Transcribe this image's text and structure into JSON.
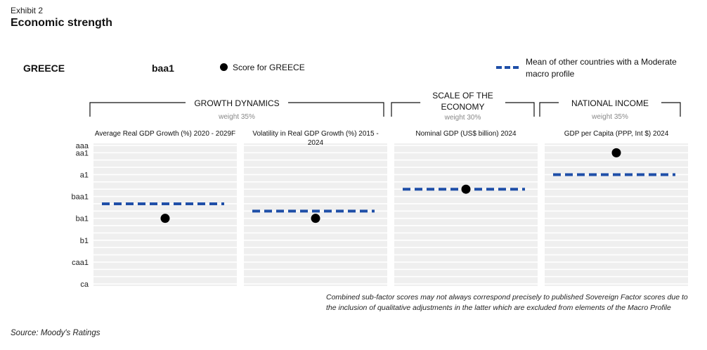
{
  "header": {
    "exhibit": "Exhibit 2",
    "title": "Economic strength"
  },
  "country": {
    "name": "GREECE",
    "score": "baa1"
  },
  "legend": {
    "score_label": "Score for GREECE",
    "mean_label": "Mean of other countries with a Moderate macro profile",
    "score_color": "#000000",
    "mean_color": "#1f4fa8"
  },
  "groups": [
    {
      "title_lines": [
        "GROWTH DYNAMICS"
      ],
      "weight": "weight 35%"
    },
    {
      "title_lines": [
        "SCALE OF THE",
        "ECONOMY"
      ],
      "weight": "weight 30%"
    },
    {
      "title_lines": [
        "NATIONAL INCOME"
      ],
      "weight": "weight 35%"
    }
  ],
  "chart_data": {
    "type": "scatter",
    "y_scale": [
      "aaa",
      "aa1",
      "a1",
      "baa1",
      "ba1",
      "b1",
      "caa1",
      "ca"
    ],
    "series": [
      {
        "name": "Score for GREECE"
      },
      {
        "name": "Mean of other countries with a Moderate macro profile"
      }
    ],
    "panels": [
      {
        "title_lines": [
          "Average Real GDP Growth (%) 2020 - 2029F"
        ],
        "score": "ba1",
        "mean": "baa2"
      },
      {
        "title_lines": [
          "Volatility in Real GDP Growth (%) 2015 -",
          "2024"
        ],
        "score": "ba1",
        "mean": "baa3"
      },
      {
        "title_lines": [
          "Nominal GDP (US$ billion) 2024"
        ],
        "score": "a3",
        "mean": "a3"
      },
      {
        "title_lines": [
          "GDP per Capita (PPP, Int $) 2024"
        ],
        "score": "aa1",
        "mean": "a1"
      }
    ]
  },
  "footnote": {
    "line1": "Combined sub-factor scores may not always correspond precisely to published Sovereign Factor scores due to",
    "line2": "the inclusion of qualitative adjustments in the latter which are excluded from elements of the Macro Profile"
  },
  "source": "Source: Moody's Ratings"
}
